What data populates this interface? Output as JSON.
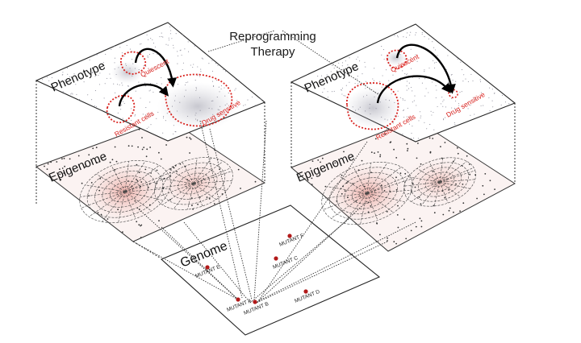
{
  "title_line1": "Reprogramming",
  "title_line2": "Therapy",
  "layers": {
    "phenotype": "Phenotype",
    "epigenome": "Epigenome",
    "genome": "Genome"
  },
  "left_phenotype": {
    "quiescent": "Quiescent",
    "resistant": "Resistant cells",
    "sensitive": "Drug sensitive"
  },
  "right_phenotype": {
    "quiescent": "Quiescent",
    "resistant": "Resistant cells",
    "sensitive": "Drug sensitive"
  },
  "mutants": {
    "e": "MUTANT E",
    "f": "MUTANT F",
    "c": "MUTANT C",
    "a": "MUTANT A",
    "b": "MUTANT B",
    "d": "MUTANT D"
  },
  "colors": {
    "red": "#d9231f",
    "line": "#222222"
  }
}
